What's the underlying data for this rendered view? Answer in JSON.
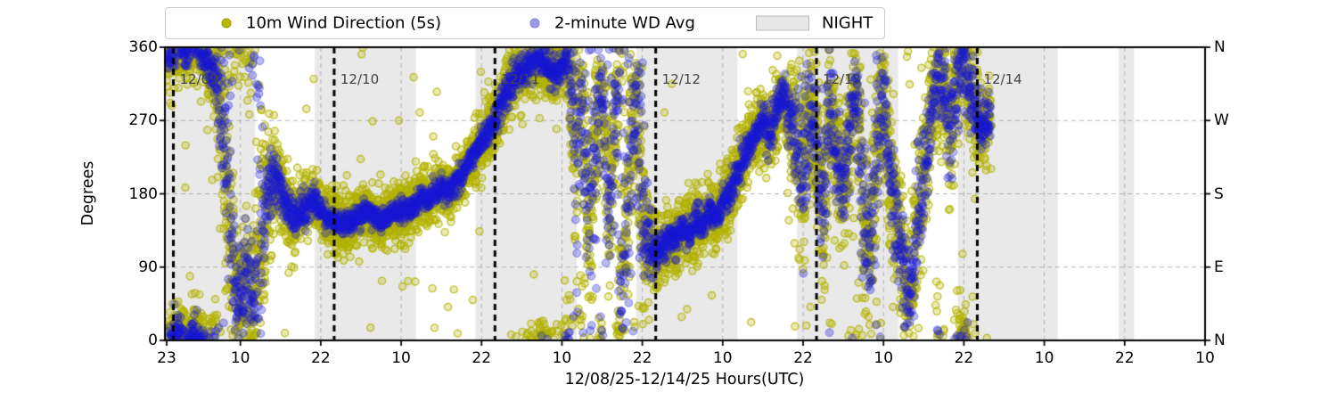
{
  "figure": {
    "xlabel": "12/08/25-12/14/25  Hours(UTC)",
    "ylabel": "Degrees",
    "legend": {
      "items": [
        {
          "label": "10m Wind Direction (5s)",
          "marker": "dot-icon",
          "color": "#b8b800"
        },
        {
          "label": "2-minute WD Avg",
          "marker": "dot-icon",
          "color": "#9a9ae8"
        },
        {
          "label": "NIGHT",
          "marker": "patch-icon",
          "color": "#e7e7e7"
        }
      ]
    }
  },
  "chart_data": {
    "type": "scatter",
    "title": "",
    "xlabel": "12/08/25-12/14/25  Hours(UTC)",
    "ylabel": "Degrees",
    "ylim": [
      0,
      360
    ],
    "yticks": [
      {
        "deg": 0,
        "label": "0",
        "compass": "N"
      },
      {
        "deg": 90,
        "label": "90",
        "compass": "E"
      },
      {
        "deg": 180,
        "label": "180",
        "compass": "S"
      },
      {
        "deg": 270,
        "label": "270",
        "compass": "W"
      },
      {
        "deg": 360,
        "label": "360",
        "compass": "N"
      }
    ],
    "x_hours_range": [
      -0.3,
      155.0
    ],
    "x_start_reference": "23:00 UTC 12/08/25",
    "xticks": [
      {
        "t": 0,
        "label": "23"
      },
      {
        "t": 11,
        "label": "10"
      },
      {
        "t": 23,
        "label": "22"
      },
      {
        "t": 35,
        "label": "10"
      },
      {
        "t": 47,
        "label": "22"
      },
      {
        "t": 59,
        "label": "10"
      },
      {
        "t": 71,
        "label": "22"
      },
      {
        "t": 83,
        "label": "10"
      },
      {
        "t": 95,
        "label": "22"
      },
      {
        "t": 107,
        "label": "10"
      },
      {
        "t": 119,
        "label": "22"
      },
      {
        "t": 131,
        "label": "10"
      },
      {
        "t": 143,
        "label": "22"
      },
      {
        "t": 155,
        "label": "10"
      }
    ],
    "day_lines": [
      {
        "t": 1,
        "label": "12/09"
      },
      {
        "t": 25,
        "label": "12/10"
      },
      {
        "t": 49,
        "label": "12/11"
      },
      {
        "t": 73,
        "label": "12/12"
      },
      {
        "t": 97,
        "label": "12/13"
      },
      {
        "t": 121,
        "label": "12/14"
      }
    ],
    "night_bands_hours": [
      [
        -0.3,
        13.2
      ],
      [
        22.1,
        37.2
      ],
      [
        46.1,
        61.2
      ],
      [
        70.1,
        85.2
      ],
      [
        94.1,
        109.2
      ],
      [
        118.1,
        133.0
      ],
      [
        142.1,
        144.4
      ]
    ],
    "grid": {
      "h_gridlines_deg": [
        90,
        180,
        270
      ],
      "v_gridlines_at_xticks": true,
      "style": "dashed-gray"
    },
    "series": [
      {
        "name": "10m Wind Direction (5s)",
        "type": "scatter",
        "color": "#b8b800",
        "sample_period_s": 5
      },
      {
        "name": "2-minute WD Avg",
        "type": "scatter",
        "color": "#1919d2",
        "alpha": 0.3,
        "sample_period_s": 120
      }
    ],
    "data_end_hour": 123,
    "wd_avg_keypoints_t_deg_spread": [
      [
        0,
        350,
        25
      ],
      [
        1,
        357,
        28
      ],
      [
        2,
        5,
        24
      ],
      [
        3,
        350,
        20
      ],
      [
        4,
        10,
        24
      ],
      [
        5,
        355,
        20
      ],
      [
        6,
        344,
        26
      ],
      [
        7,
        338,
        32
      ],
      [
        8,
        295,
        85
      ],
      [
        9,
        195,
        125
      ],
      [
        10,
        75,
        95
      ],
      [
        11,
        40,
        60
      ],
      [
        12,
        75,
        95
      ],
      [
        13,
        45,
        70
      ],
      [
        14,
        120,
        145
      ],
      [
        15,
        172,
        65
      ],
      [
        16,
        202,
        42
      ],
      [
        17,
        185,
        30
      ],
      [
        18,
        163,
        28
      ],
      [
        19,
        150,
        24
      ],
      [
        20,
        156,
        22
      ],
      [
        21,
        166,
        20
      ],
      [
        22,
        170,
        18
      ],
      [
        23,
        160,
        16
      ],
      [
        24,
        150,
        15
      ],
      [
        26,
        142,
        16
      ],
      [
        28,
        147,
        14
      ],
      [
        30,
        160,
        15
      ],
      [
        32,
        146,
        14
      ],
      [
        34,
        159,
        14
      ],
      [
        36,
        160,
        15
      ],
      [
        37,
        168,
        16
      ],
      [
        38,
        178,
        16
      ],
      [
        39,
        170,
        15
      ],
      [
        40,
        184,
        16
      ],
      [
        41,
        190,
        15
      ],
      [
        42,
        181,
        16
      ],
      [
        43,
        194,
        15
      ],
      [
        44,
        202,
        16
      ],
      [
        45,
        216,
        18
      ],
      [
        46,
        230,
        18
      ],
      [
        47,
        242,
        18
      ],
      [
        48,
        256,
        20
      ],
      [
        49,
        272,
        22
      ],
      [
        50,
        292,
        24
      ],
      [
        51,
        308,
        26
      ],
      [
        52,
        322,
        24
      ],
      [
        53,
        330,
        22
      ],
      [
        54,
        336,
        20
      ],
      [
        55,
        342,
        18
      ],
      [
        56,
        345,
        18
      ],
      [
        57,
        334,
        24
      ],
      [
        58,
        325,
        26
      ],
      [
        59,
        338,
        22
      ],
      [
        60,
        344,
        32
      ],
      [
        61,
        250,
        135
      ],
      [
        62,
        300,
        95
      ],
      [
        63,
        120,
        115
      ],
      [
        64,
        250,
        125
      ],
      [
        65,
        318,
        75
      ],
      [
        66,
        160,
        135
      ],
      [
        67,
        280,
        95
      ],
      [
        68,
        85,
        115
      ],
      [
        69,
        200,
        135
      ],
      [
        70,
        298,
        85
      ],
      [
        71,
        170,
        125
      ],
      [
        72,
        120,
        42
      ],
      [
        73,
        103,
        26
      ],
      [
        74,
        112,
        22
      ],
      [
        75,
        128,
        22
      ],
      [
        76,
        118,
        20
      ],
      [
        77,
        138,
        20
      ],
      [
        78,
        128,
        20
      ],
      [
        79,
        148,
        20
      ],
      [
        80,
        140,
        18
      ],
      [
        81,
        158,
        18
      ],
      [
        82,
        150,
        18
      ],
      [
        83,
        168,
        20
      ],
      [
        84,
        182,
        22
      ],
      [
        85,
        200,
        24
      ],
      [
        86,
        220,
        26
      ],
      [
        87,
        240,
        24
      ],
      [
        88,
        258,
        24
      ],
      [
        89,
        270,
        22
      ],
      [
        90,
        252,
        26
      ],
      [
        91,
        282,
        24
      ],
      [
        92,
        300,
        26
      ],
      [
        93,
        272,
        42
      ],
      [
        94,
        240,
        85
      ],
      [
        95,
        205,
        115
      ],
      [
        96,
        278,
        75
      ],
      [
        97,
        250,
        60
      ],
      [
        98,
        155,
        105
      ],
      [
        99,
        295,
        85
      ],
      [
        100,
        232,
        60
      ],
      [
        101,
        185,
        72
      ],
      [
        102,
        250,
        85
      ],
      [
        103,
        315,
        62
      ],
      [
        104,
        155,
        115
      ],
      [
        105,
        105,
        85
      ],
      [
        106,
        255,
        105
      ],
      [
        107,
        298,
        62
      ],
      [
        108,
        205,
        95
      ],
      [
        109,
        150,
        85
      ],
      [
        110,
        85,
        62
      ],
      [
        111,
        55,
        52
      ],
      [
        112,
        125,
        95
      ],
      [
        113,
        200,
        85
      ],
      [
        114,
        278,
        62
      ],
      [
        115,
        328,
        52
      ],
      [
        116,
        302,
        46
      ],
      [
        117,
        255,
        85
      ],
      [
        118,
        318,
        62
      ],
      [
        119,
        348,
        42
      ],
      [
        120,
        305,
        62
      ],
      [
        121,
        272,
        42
      ],
      [
        122,
        260,
        30
      ],
      [
        123,
        278,
        36
      ]
    ],
    "colors": {
      "night_band": "#e9e9e9",
      "day_line": "#000000",
      "gridline": "#b0b0b0",
      "date_label": "#444444"
    }
  }
}
